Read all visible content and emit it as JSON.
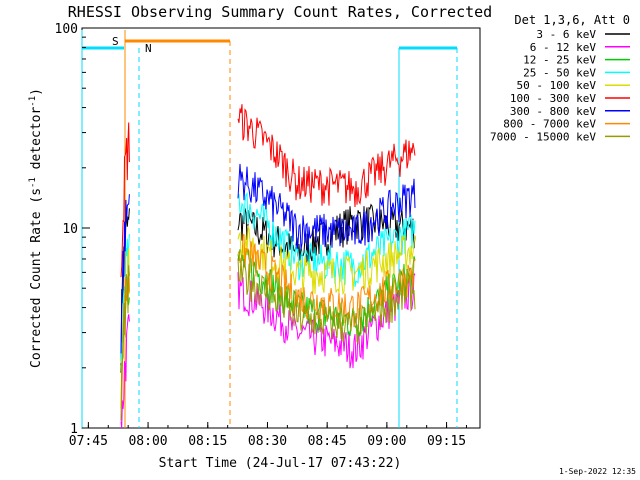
{
  "chart_data": {
    "type": "line",
    "title": "RHESSI Observing Summary Count Rates, Corrected",
    "xlabel": "Start Time (24-Jul-17 07:43:22)",
    "ylabel_main": "Corrected Count Rate (s",
    "ylabel_sup1": "-1",
    "ylabel_mid": " detector",
    "ylabel_sup2": "-1",
    "ylabel_end": ")",
    "y_scale": "log",
    "ylim": [
      1,
      100
    ],
    "xlim_minutes": [
      0,
      100
    ],
    "x_ticks": [
      {
        "label": "07:45",
        "minute": 1.6
      },
      {
        "label": "08:00",
        "minute": 16.6
      },
      {
        "label": "08:15",
        "minute": 31.6
      },
      {
        "label": "08:30",
        "minute": 46.6
      },
      {
        "label": "08:45",
        "minute": 61.6
      },
      {
        "label": "09:00",
        "minute": 76.6
      },
      {
        "label": "09:15",
        "minute": 91.6
      }
    ],
    "y_ticks": [
      {
        "label": "1",
        "value": 1
      },
      {
        "label": "10",
        "value": 10
      },
      {
        "label": "100",
        "value": 100
      }
    ],
    "legend_title": "Det 1,3,6, Att 0",
    "legend_position": "top-right",
    "series": [
      {
        "name": "3 - 6 keV",
        "color": "#000000",
        "seg1": [
          0,
          9,
          10
        ],
        "seg2": [
          11,
          7.5,
          11,
          10
        ]
      },
      {
        "name": "6 - 12 keV",
        "color": "#ff00ff",
        "seg1": [
          0,
          2.2,
          3
        ],
        "seg2": [
          5,
          3,
          2.5,
          5
        ]
      },
      {
        "name": "12 - 25 keV",
        "color": "#00cc00",
        "seg1": [
          0,
          5,
          6
        ],
        "seg2": [
          7,
          4,
          3.4,
          6
        ]
      },
      {
        "name": "25 - 50 keV",
        "color": "#00ffff",
        "seg1": [
          0,
          6,
          7
        ],
        "seg2": [
          14,
          7,
          6.5,
          10
        ]
      },
      {
        "name": "50 - 100 keV",
        "color": "#dddd00",
        "seg1": [
          0,
          5.5,
          6.5
        ],
        "seg2": [
          9,
          6,
          6,
          8
        ]
      },
      {
        "name": "100 - 300 keV",
        "color": "#ff0000",
        "seg1": [
          0,
          20,
          28
        ],
        "seg2": [
          36,
          17,
          16,
          25
        ]
      },
      {
        "name": "300 - 800 keV",
        "color": "#0000ff",
        "seg1": [
          0,
          10,
          14
        ],
        "seg2": [
          18,
          10,
          9.5,
          15
        ]
      },
      {
        "name": "800 - 7000 keV",
        "color": "#ff8800",
        "seg1": [
          0,
          4.5,
          5.5
        ],
        "seg2": [
          8,
          4.5,
          4,
          6
        ]
      },
      {
        "name": "7000 - 15000 keV",
        "color": "#999900",
        "seg1": [
          0,
          4,
          5
        ],
        "seg2": [
          6,
          3.6,
          3.2,
          5
        ]
      }
    ],
    "flags": [
      {
        "label": "S",
        "color": "#ff8800"
      },
      {
        "label": "N",
        "color": "#00ddff"
      }
    ],
    "footer": "1-Sep-2022 12:35"
  }
}
